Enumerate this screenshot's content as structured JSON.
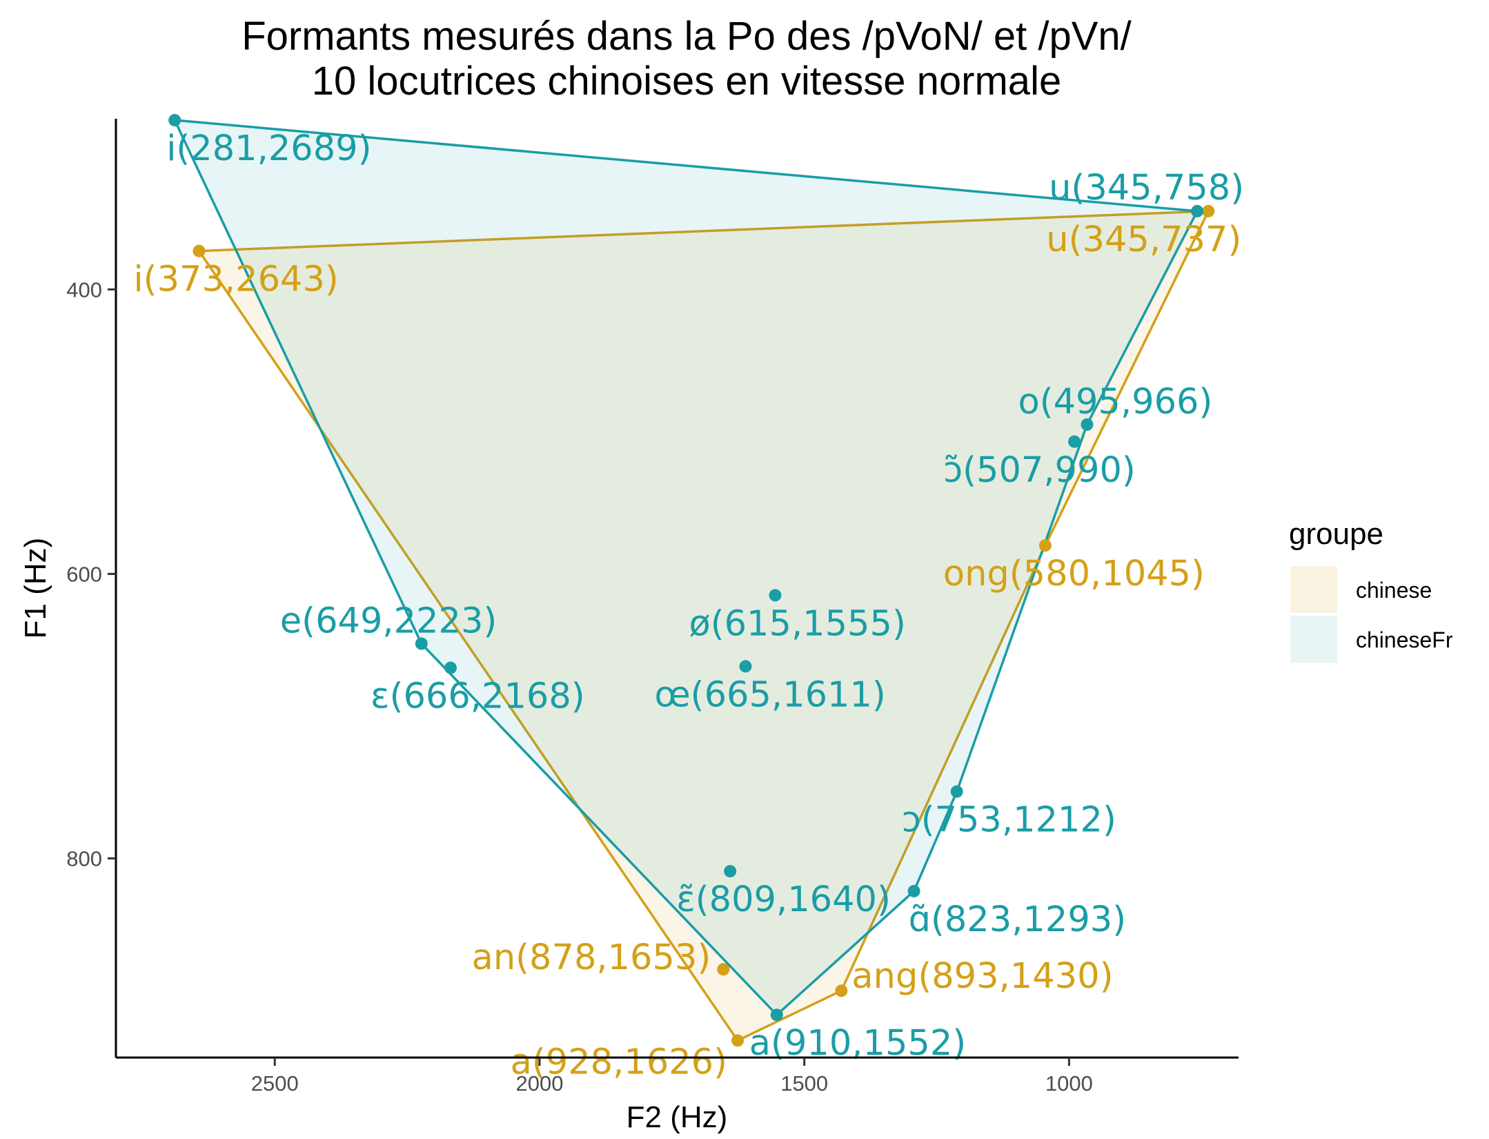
{
  "chart_data": {
    "type": "scatter",
    "title": "Formants mesurés dans la Po des /pVoN/ et /pVn/",
    "subtitle": "10 locutrices chinoises en vitesse normale",
    "xlabel": "F2 (Hz)",
    "ylabel": "F1 (Hz)",
    "x_reversed": true,
    "y_reversed": true,
    "xlim": [
      2800,
      680
    ],
    "ylim": [
      280,
      940
    ],
    "x_ticks": [
      2500,
      2000,
      1500,
      1000
    ],
    "y_ticks": [
      400,
      600,
      800
    ],
    "grid": false,
    "legend": {
      "title": "groupe",
      "position": "right",
      "items": [
        {
          "label": "chinese",
          "color": "#D4A017"
        },
        {
          "label": "chineseFr",
          "color": "#1A9DA5"
        }
      ]
    },
    "series": [
      {
        "name": "chinese",
        "color": "#D4A017",
        "fill": "#FBF3E2",
        "hull": [
          "i(373,2643)",
          "u(345,737)",
          "ong(580,1045)",
          "ang(893,1430)",
          "a(928,1626)"
        ],
        "points": [
          {
            "label": "i(373,2643)",
            "f1": 373,
            "f2": 2643
          },
          {
            "label": "u(345,737)",
            "f1": 345,
            "f2": 737
          },
          {
            "label": "ong(580,1045)",
            "f1": 580,
            "f2": 1045
          },
          {
            "label": "an(878,1653)",
            "f1": 878,
            "f2": 1653
          },
          {
            "label": "ang(893,1430)",
            "f1": 893,
            "f2": 1430
          },
          {
            "label": "a(928,1626)",
            "f1": 928,
            "f2": 1626
          }
        ]
      },
      {
        "name": "chineseFr",
        "color": "#1A9DA5",
        "fill": "#E6F4F4",
        "hull": [
          "i(281,2689)",
          "u(345,758)",
          "o(495,966)",
          "ɔ(753,1212)",
          "ɑ̃(823,1293)",
          "a(910,1552)",
          "e(649,2223)"
        ],
        "points": [
          {
            "label": "i(281,2689)",
            "f1": 281,
            "f2": 2689
          },
          {
            "label": "u(345,758)",
            "f1": 345,
            "f2": 758
          },
          {
            "label": "o(495,966)",
            "f1": 495,
            "f2": 966
          },
          {
            "label": "ɔ̃(507,990)",
            "f1": 507,
            "f2": 990
          },
          {
            "label": "ø(615,1555)",
            "f1": 615,
            "f2": 1555
          },
          {
            "label": "e(649,2223)",
            "f1": 649,
            "f2": 2223
          },
          {
            "label": "œ(665,1611)",
            "f1": 665,
            "f2": 1611
          },
          {
            "label": "ɛ(666,2168)",
            "f1": 666,
            "f2": 2168
          },
          {
            "label": "ɔ(753,1212)",
            "f1": 753,
            "f2": 1212
          },
          {
            "label": "ɛ̃(809,1640)",
            "f1": 809,
            "f2": 1640
          },
          {
            "label": "ɑ̃(823,1293)",
            "f1": 823,
            "f2": 1293
          },
          {
            "label": "a(910,1552)",
            "f1": 910,
            "f2": 1552
          }
        ]
      }
    ]
  }
}
